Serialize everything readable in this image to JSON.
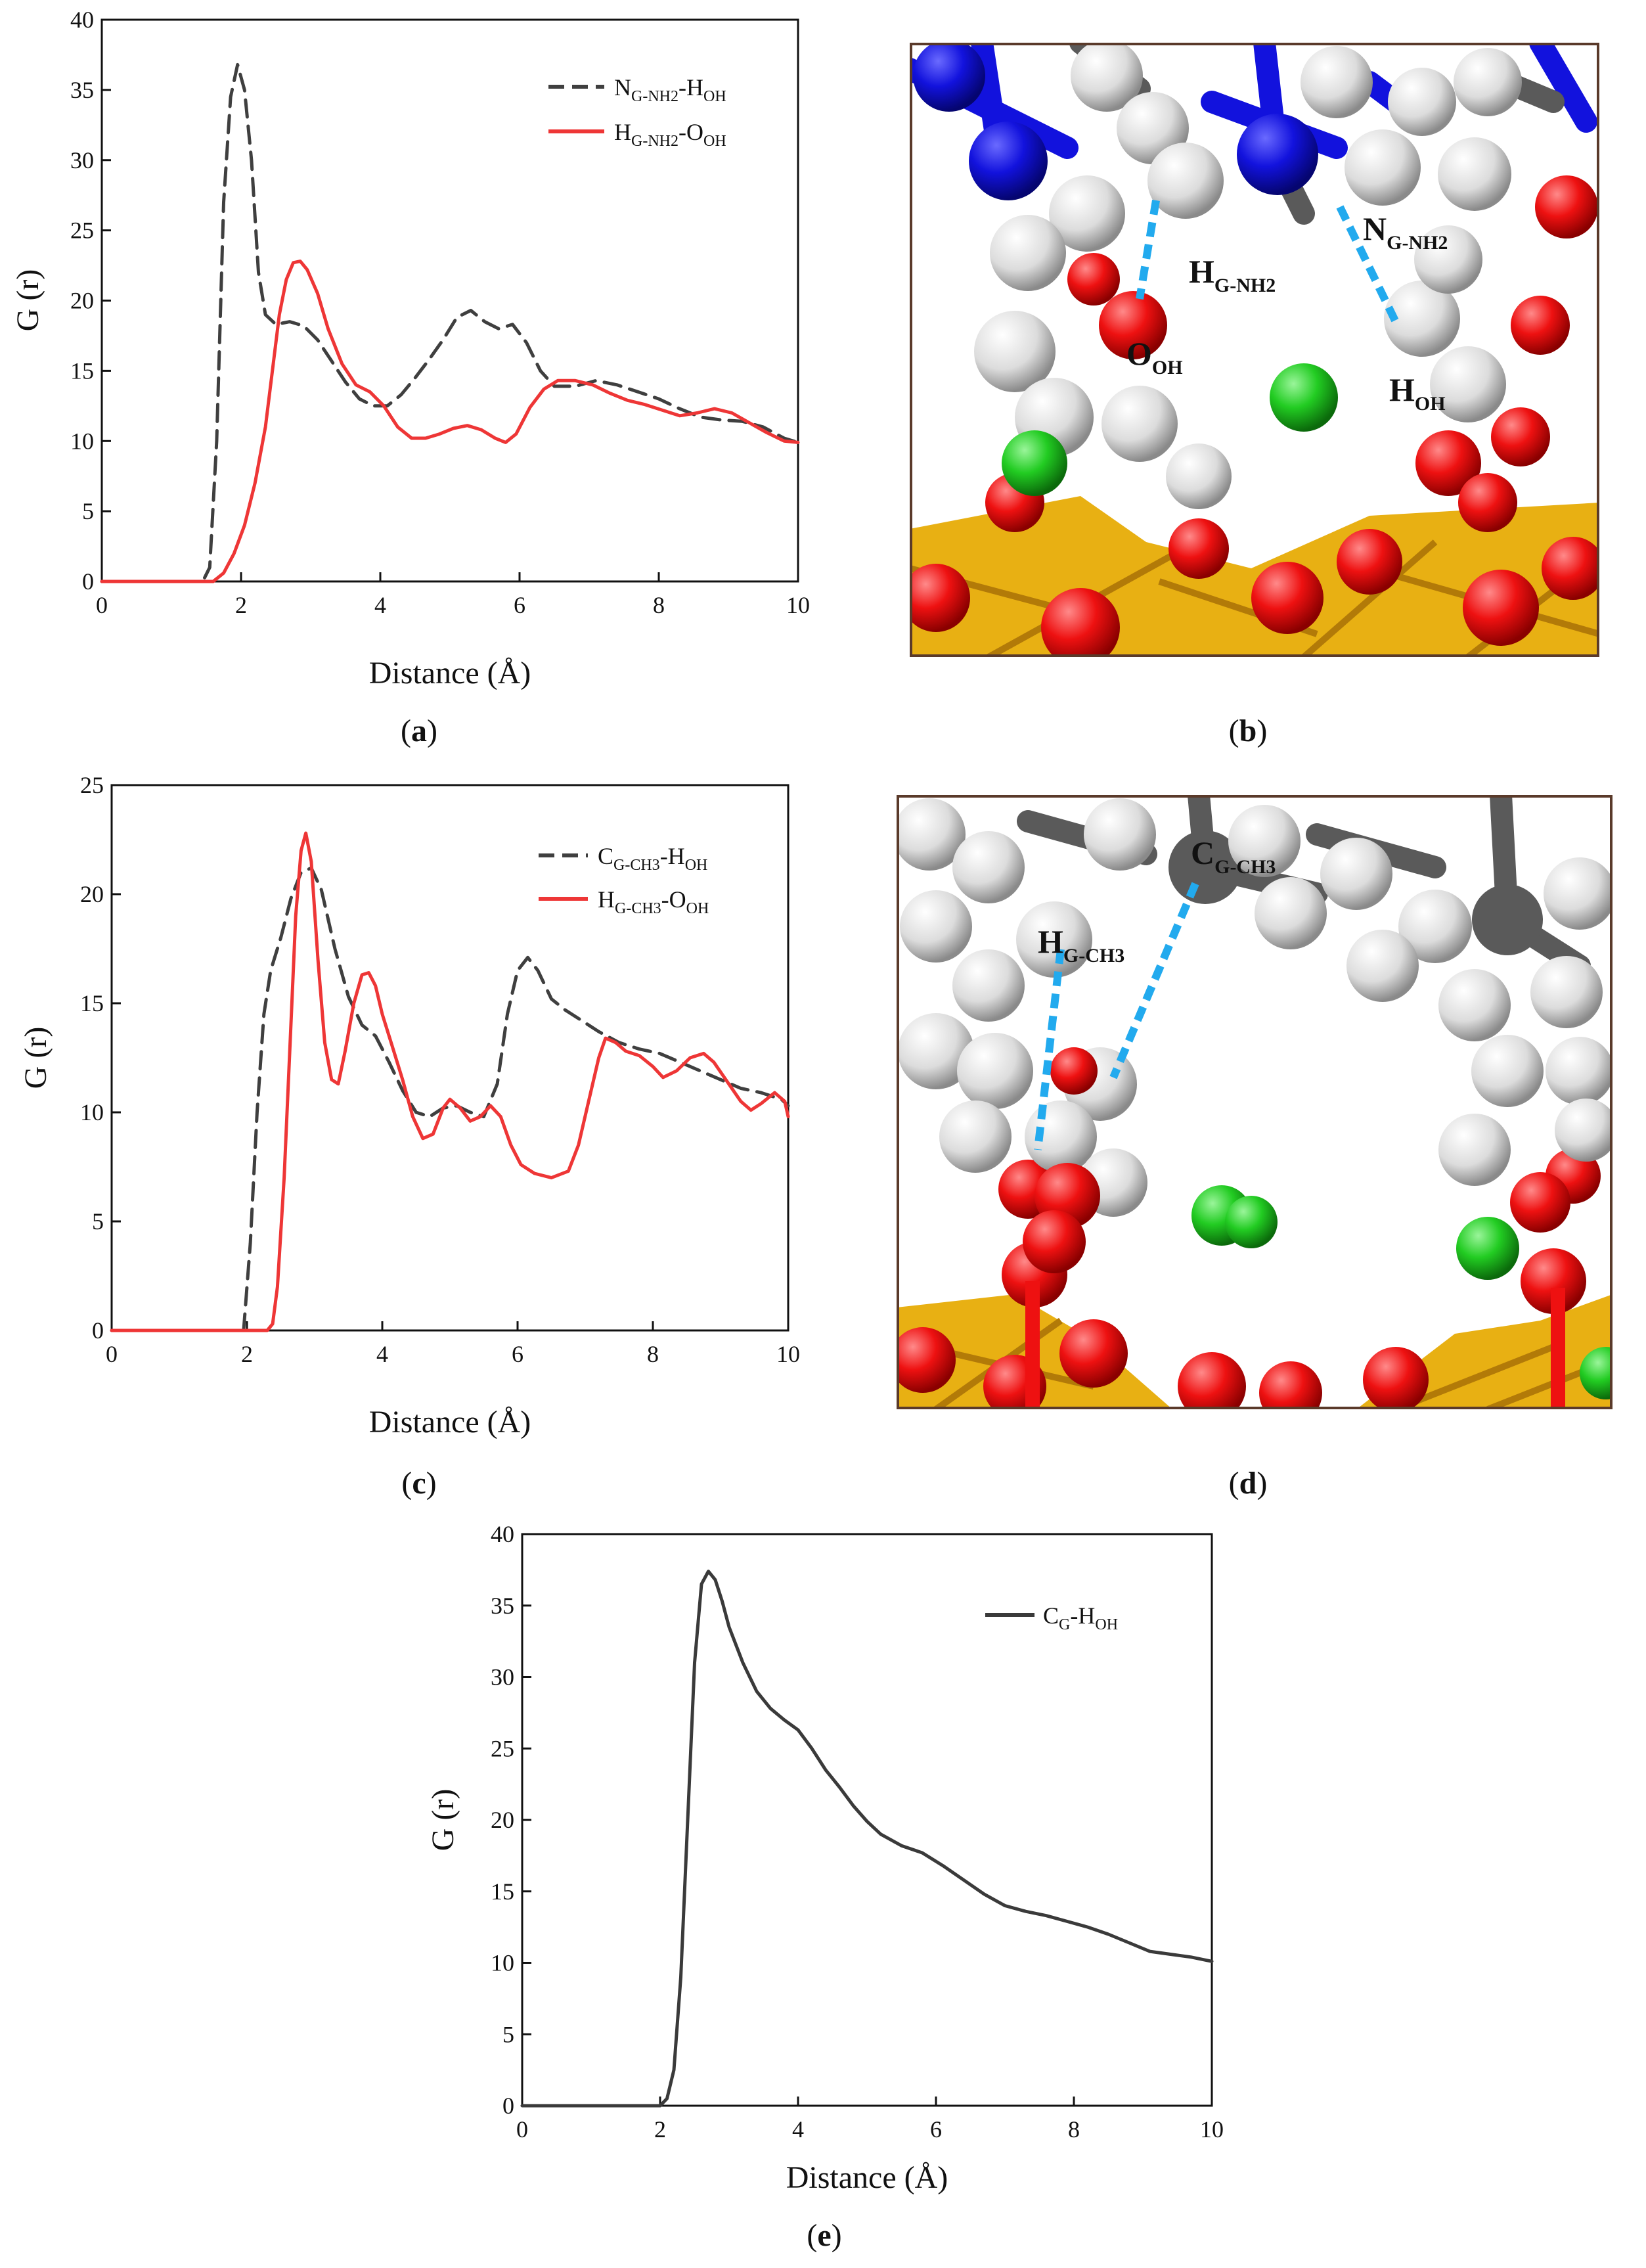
{
  "chart_data": [
    {
      "id": "a",
      "type": "line",
      "caption": "a",
      "xlabel": "Distance (Å)",
      "ylabel": "G (r)",
      "xlim": [
        0,
        10
      ],
      "ylim": [
        0,
        40
      ],
      "xticks": [
        0,
        2,
        4,
        6,
        8,
        10
      ],
      "yticks": [
        0,
        5,
        10,
        15,
        20,
        25,
        30,
        35,
        40
      ],
      "legend_position": "top-right",
      "series": [
        {
          "name_main": "N",
          "name_sub1": "G-NH2",
          "name_mid": "-H",
          "name_sub2": "OH",
          "color": "#3f3f3f",
          "style": "dashed",
          "points": [
            [
              0,
              0
            ],
            [
              1.45,
              0
            ],
            [
              1.55,
              1
            ],
            [
              1.65,
              10
            ],
            [
              1.75,
              27
            ],
            [
              1.85,
              34.5
            ],
            [
              1.95,
              36.8
            ],
            [
              2.05,
              35
            ],
            [
              2.15,
              30
            ],
            [
              2.25,
              22
            ],
            [
              2.35,
              19
            ],
            [
              2.5,
              18.3
            ],
            [
              2.7,
              18.5
            ],
            [
              2.9,
              18.2
            ],
            [
              3.1,
              17.2
            ],
            [
              3.3,
              15.7
            ],
            [
              3.5,
              14.2
            ],
            [
              3.7,
              13
            ],
            [
              3.9,
              12.5
            ],
            [
              4.1,
              12.5
            ],
            [
              4.3,
              13.3
            ],
            [
              4.5,
              14.5
            ],
            [
              4.7,
              15.8
            ],
            [
              4.9,
              17.2
            ],
            [
              5.1,
              18.8
            ],
            [
              5.3,
              19.3
            ],
            [
              5.5,
              18.5
            ],
            [
              5.7,
              18
            ],
            [
              5.9,
              18.3
            ],
            [
              6.1,
              17
            ],
            [
              6.3,
              15
            ],
            [
              6.5,
              13.9
            ],
            [
              6.8,
              13.9
            ],
            [
              7.1,
              14.3
            ],
            [
              7.4,
              14
            ],
            [
              7.7,
              13.5
            ],
            [
              8,
              13
            ],
            [
              8.3,
              12.3
            ],
            [
              8.6,
              11.7
            ],
            [
              8.9,
              11.5
            ],
            [
              9.2,
              11.4
            ],
            [
              9.5,
              11
            ],
            [
              9.8,
              10.2
            ],
            [
              10,
              9.9
            ]
          ]
        },
        {
          "name_main": "H",
          "name_sub1": "G-NH2",
          "name_mid": "-O",
          "name_sub2": "OH",
          "color": "#ee3636",
          "style": "solid",
          "points": [
            [
              0,
              0
            ],
            [
              1.6,
              0
            ],
            [
              1.75,
              0.6
            ],
            [
              1.9,
              2
            ],
            [
              2.05,
              4
            ],
            [
              2.2,
              7
            ],
            [
              2.35,
              11
            ],
            [
              2.45,
              15
            ],
            [
              2.55,
              19
            ],
            [
              2.65,
              21.5
            ],
            [
              2.75,
              22.7
            ],
            [
              2.85,
              22.8
            ],
            [
              2.95,
              22.2
            ],
            [
              3.1,
              20.5
            ],
            [
              3.25,
              18
            ],
            [
              3.45,
              15.5
            ],
            [
              3.65,
              14
            ],
            [
              3.85,
              13.5
            ],
            [
              4.05,
              12.5
            ],
            [
              4.25,
              11
            ],
            [
              4.45,
              10.2
            ],
            [
              4.65,
              10.2
            ],
            [
              4.85,
              10.5
            ],
            [
              5.05,
              10.9
            ],
            [
              5.25,
              11.1
            ],
            [
              5.45,
              10.8
            ],
            [
              5.65,
              10.2
            ],
            [
              5.8,
              9.9
            ],
            [
              5.95,
              10.5
            ],
            [
              6.15,
              12.4
            ],
            [
              6.35,
              13.7
            ],
            [
              6.55,
              14.3
            ],
            [
              6.8,
              14.3
            ],
            [
              7.05,
              14
            ],
            [
              7.3,
              13.4
            ],
            [
              7.55,
              12.9
            ],
            [
              7.8,
              12.6
            ],
            [
              8.05,
              12.2
            ],
            [
              8.3,
              11.8
            ],
            [
              8.55,
              12
            ],
            [
              8.8,
              12.3
            ],
            [
              9.05,
              12
            ],
            [
              9.3,
              11.3
            ],
            [
              9.55,
              10.6
            ],
            [
              9.8,
              10
            ],
            [
              10,
              9.9
            ]
          ]
        }
      ]
    },
    {
      "id": "c",
      "type": "line",
      "caption": "c",
      "xlabel": "Distance (Å)",
      "ylabel": "G (r)",
      "xlim": [
        0,
        10
      ],
      "ylim": [
        0,
        25
      ],
      "xticks": [
        0,
        2,
        4,
        6,
        8,
        10
      ],
      "yticks": [
        0,
        5,
        10,
        15,
        20,
        25
      ],
      "legend_position": "top-right",
      "series": [
        {
          "name_main": "C",
          "name_sub1": "G-CH3",
          "name_mid": "-H",
          "name_sub2": "OH",
          "color": "#3f3f3f",
          "style": "dashed",
          "points": [
            [
              0,
              0
            ],
            [
              1.95,
              0
            ],
            [
              2.05,
              4
            ],
            [
              2.15,
              10
            ],
            [
              2.25,
              14.5
            ],
            [
              2.35,
              16.5
            ],
            [
              2.5,
              18
            ],
            [
              2.65,
              19.8
            ],
            [
              2.8,
              21
            ],
            [
              2.95,
              21.2
            ],
            [
              3.1,
              20.2
            ],
            [
              3.3,
              17.5
            ],
            [
              3.5,
              15.3
            ],
            [
              3.7,
              14
            ],
            [
              3.9,
              13.5
            ],
            [
              4.1,
              12.3
            ],
            [
              4.3,
              11
            ],
            [
              4.5,
              10
            ],
            [
              4.7,
              9.8
            ],
            [
              4.9,
              10.2
            ],
            [
              5.1,
              10.3
            ],
            [
              5.3,
              10
            ],
            [
              5.5,
              9.8
            ],
            [
              5.7,
              11.3
            ],
            [
              5.85,
              14.5
            ],
            [
              6.0,
              16.5
            ],
            [
              6.15,
              17.1
            ],
            [
              6.3,
              16.5
            ],
            [
              6.5,
              15.2
            ],
            [
              6.7,
              14.7
            ],
            [
              6.9,
              14.3
            ],
            [
              7.2,
              13.7
            ],
            [
              7.5,
              13.2
            ],
            [
              7.8,
              12.9
            ],
            [
              8.1,
              12.7
            ],
            [
              8.4,
              12.3
            ],
            [
              8.7,
              11.9
            ],
            [
              9,
              11.5
            ],
            [
              9.3,
              11.1
            ],
            [
              9.6,
              10.9
            ],
            [
              9.9,
              10.6
            ],
            [
              10,
              10.3
            ]
          ]
        },
        {
          "name_main": "H",
          "name_sub1": "G-CH3",
          "name_mid": "-O",
          "name_sub2": "OH",
          "color": "#ee3636",
          "style": "solid",
          "points": [
            [
              0,
              0
            ],
            [
              2.3,
              0
            ],
            [
              2.38,
              0.3
            ],
            [
              2.45,
              2
            ],
            [
              2.55,
              7
            ],
            [
              2.65,
              14
            ],
            [
              2.72,
              19
            ],
            [
              2.8,
              22
            ],
            [
              2.87,
              22.8
            ],
            [
              2.95,
              21.5
            ],
            [
              3.05,
              17
            ],
            [
              3.15,
              13.2
            ],
            [
              3.25,
              11.5
            ],
            [
              3.35,
              11.3
            ],
            [
              3.45,
              12.8
            ],
            [
              3.58,
              15
            ],
            [
              3.7,
              16.3
            ],
            [
              3.8,
              16.4
            ],
            [
              3.9,
              15.8
            ],
            [
              4.0,
              14.5
            ],
            [
              4.15,
              13
            ],
            [
              4.3,
              11.5
            ],
            [
              4.45,
              9.8
            ],
            [
              4.6,
              8.8
            ],
            [
              4.75,
              9
            ],
            [
              4.9,
              10.2
            ],
            [
              5.0,
              10.6
            ],
            [
              5.15,
              10.2
            ],
            [
              5.3,
              9.6
            ],
            [
              5.45,
              9.8
            ],
            [
              5.6,
              10.3
            ],
            [
              5.75,
              9.8
            ],
            [
              5.9,
              8.5
            ],
            [
              6.05,
              7.6
            ],
            [
              6.25,
              7.2
            ],
            [
              6.5,
              7.0
            ],
            [
              6.75,
              7.3
            ],
            [
              6.9,
              8.5
            ],
            [
              7.05,
              10.5
            ],
            [
              7.2,
              12.5
            ],
            [
              7.3,
              13.4
            ],
            [
              7.45,
              13.2
            ],
            [
              7.6,
              12.8
            ],
            [
              7.8,
              12.6
            ],
            [
              8.0,
              12.1
            ],
            [
              8.15,
              11.6
            ],
            [
              8.35,
              11.9
            ],
            [
              8.55,
              12.5
            ],
            [
              8.75,
              12.7
            ],
            [
              8.9,
              12.3
            ],
            [
              9.1,
              11.4
            ],
            [
              9.3,
              10.5
            ],
            [
              9.45,
              10.1
            ],
            [
              9.6,
              10.4
            ],
            [
              9.8,
              10.9
            ],
            [
              9.95,
              10.5
            ],
            [
              10,
              9.8
            ]
          ]
        }
      ]
    },
    {
      "id": "e",
      "type": "line",
      "caption": "e",
      "xlabel": "Distance (Å)",
      "ylabel": "G (r)",
      "xlim": [
        0,
        10
      ],
      "ylim": [
        0,
        40
      ],
      "xticks": [
        0,
        2,
        4,
        6,
        8,
        10
      ],
      "yticks": [
        0,
        5,
        10,
        15,
        20,
        25,
        30,
        35,
        40
      ],
      "legend_position": "top-right",
      "series": [
        {
          "name_main": "C",
          "name_sub1": "G",
          "name_mid": "-H",
          "name_sub2": "OH",
          "color": "#3a3a3a",
          "style": "solid",
          "points": [
            [
              0,
              0
            ],
            [
              2.0,
              0
            ],
            [
              2.1,
              0.5
            ],
            [
              2.2,
              2.5
            ],
            [
              2.3,
              9
            ],
            [
              2.4,
              20
            ],
            [
              2.5,
              31
            ],
            [
              2.6,
              36.5
            ],
            [
              2.7,
              37.4
            ],
            [
              2.8,
              36.8
            ],
            [
              2.9,
              35.3
            ],
            [
              3.0,
              33.5
            ],
            [
              3.2,
              31
            ],
            [
              3.4,
              29
            ],
            [
              3.6,
              27.8
            ],
            [
              3.8,
              27
            ],
            [
              4.0,
              26.3
            ],
            [
              4.2,
              25
            ],
            [
              4.4,
              23.5
            ],
            [
              4.6,
              22.3
            ],
            [
              4.8,
              21
            ],
            [
              5.0,
              19.9
            ],
            [
              5.2,
              19
            ],
            [
              5.5,
              18.2
            ],
            [
              5.8,
              17.7
            ],
            [
              6.1,
              16.8
            ],
            [
              6.4,
              15.8
            ],
            [
              6.7,
              14.8
            ],
            [
              7.0,
              14
            ],
            [
              7.3,
              13.6
            ],
            [
              7.6,
              13.3
            ],
            [
              7.9,
              12.9
            ],
            [
              8.2,
              12.5
            ],
            [
              8.5,
              12
            ],
            [
              8.8,
              11.4
            ],
            [
              9.1,
              10.8
            ],
            [
              9.4,
              10.6
            ],
            [
              9.7,
              10.4
            ],
            [
              10,
              10.1
            ]
          ]
        }
      ]
    }
  ],
  "molecular_panels": [
    {
      "id": "b",
      "caption": "b",
      "labels": [
        {
          "main": "N",
          "sub": "G-NH2"
        },
        {
          "main": "H",
          "sub": "G-NH2"
        },
        {
          "main": "O",
          "sub": "OH"
        },
        {
          "main": "H",
          "sub": "OH"
        }
      ]
    },
    {
      "id": "d",
      "caption": "d",
      "labels": [
        {
          "main": "C",
          "sub": "G-CH3"
        },
        {
          "main": "H",
          "sub": "G-CH3"
        }
      ]
    }
  ],
  "colors": {
    "nitrogen": "#1212dd",
    "hydrogen": "#e9e9e9",
    "oxygen": "#ee1111",
    "chlorine": "#22cc22",
    "carbon": "#5a5a5a",
    "silicon": "#e8b013",
    "bond_marker": "#22aaee"
  }
}
